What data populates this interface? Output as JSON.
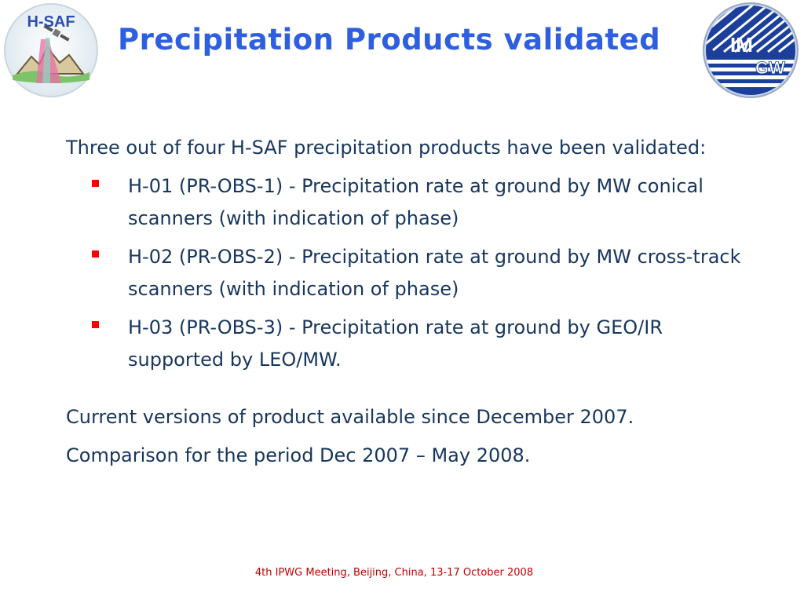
{
  "header": {
    "title": "Precipitation Products validated",
    "left_logo": {
      "text": "H-SAF",
      "icon": "h-saf-logo-icon"
    },
    "right_logo": {
      "text_top": "IM",
      "text_bottom": "GW",
      "icon": "imgw-logo-icon"
    }
  },
  "body": {
    "intro": "Three out of four H-SAF precipitation products have been validated:",
    "bullets": [
      "H-01 (PR-OBS-1) - Precipitation rate at ground by MW conical scanners (with indication of phase)",
      "H-02 (PR-OBS-2) - Precipitation rate at ground by MW cross-track scanners (with indication of phase)",
      "H-03 (PR-OBS-3) - Precipitation rate at ground by GEO/IR supported by LEO/MW."
    ],
    "current_versions": "Current versions of product available since December 2007.",
    "comparison": "Comparison for the period Dec 2007 – May 2008."
  },
  "footer": {
    "text": "4th IPWG Meeting, Beijing, China, 13-17 October 2008"
  },
  "colors": {
    "title": "#2e5fe0",
    "body_text": "#17365d",
    "bullet": "#ff0000",
    "footer": "#c00000"
  }
}
